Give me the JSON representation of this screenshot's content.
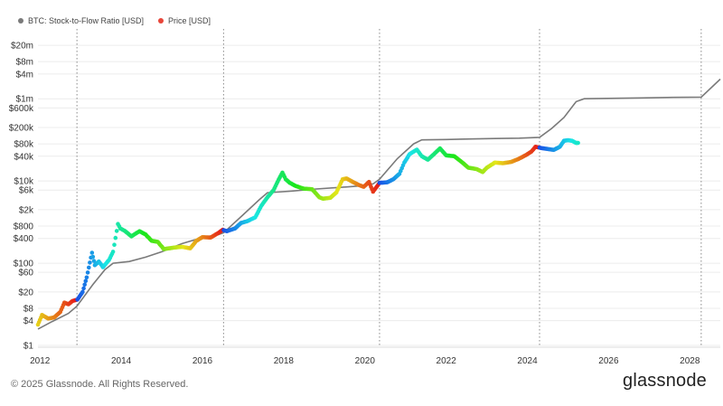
{
  "legend": [
    {
      "label": "BTC: Stock-to-Flow Ratio [USD]",
      "color": "#7a7a7a"
    },
    {
      "label": "Price [USD]",
      "color": "#e8463a"
    }
  ],
  "footer": "© 2025 Glassnode. All Rights Reserved.",
  "logo": "glassnode",
  "chart_data": {
    "type": "line",
    "y_scale": "log",
    "ylim": [
      1,
      50000000
    ],
    "xlim": [
      2011.95,
      2028.75
    ],
    "grid": true,
    "y_ticks": [
      {
        "v": 1,
        "label": "$1"
      },
      {
        "v": 4,
        "label": "$4"
      },
      {
        "v": 8,
        "label": "$8"
      },
      {
        "v": 20,
        "label": "$20"
      },
      {
        "v": 60,
        "label": "$60"
      },
      {
        "v": 100,
        "label": "$100"
      },
      {
        "v": 400,
        "label": "$400"
      },
      {
        "v": 800,
        "label": "$800"
      },
      {
        "v": 2000,
        "label": "$2k"
      },
      {
        "v": 6000,
        "label": "$6k"
      },
      {
        "v": 10000,
        "label": "$10k"
      },
      {
        "v": 40000,
        "label": "$40k"
      },
      {
        "v": 80000,
        "label": "$80k"
      },
      {
        "v": 200000,
        "label": "$200k"
      },
      {
        "v": 600000,
        "label": "$600k"
      },
      {
        "v": 1000000,
        "label": "$1m"
      },
      {
        "v": 4000000,
        "label": "$4m"
      },
      {
        "v": 8000000,
        "label": "$8m"
      },
      {
        "v": 20000000,
        "label": "$20m"
      }
    ],
    "x_ticks": [
      {
        "v": 2012,
        "label": "2012"
      },
      {
        "v": 2014,
        "label": "2014"
      },
      {
        "v": 2016,
        "label": "2016"
      },
      {
        "v": 2018,
        "label": "2018"
      },
      {
        "v": 2020,
        "label": "2020"
      },
      {
        "v": 2022,
        "label": "2022"
      },
      {
        "v": 2024,
        "label": "2024"
      },
      {
        "v": 2026,
        "label": "2026"
      },
      {
        "v": 2028,
        "label": "2028"
      }
    ],
    "halving_lines": [
      2012.91,
      2016.52,
      2020.36,
      2024.3,
      2028.28
    ],
    "series": [
      {
        "name": "BTC: Stock-to-Flow Ratio [USD]",
        "color": "#7a7a7a",
        "points": [
          [
            2011.95,
            2.5
          ],
          [
            2012.3,
            3.8
          ],
          [
            2012.7,
            6
          ],
          [
            2012.91,
            9
          ],
          [
            2013.3,
            30
          ],
          [
            2013.6,
            70
          ],
          [
            2013.8,
            100
          ],
          [
            2014.2,
            110
          ],
          [
            2014.6,
            140
          ],
          [
            2015.0,
            190
          ],
          [
            2015.5,
            300
          ],
          [
            2016.0,
            420
          ],
          [
            2016.4,
            500
          ],
          [
            2016.52,
            550
          ],
          [
            2017.0,
            1500
          ],
          [
            2017.4,
            3500
          ],
          [
            2017.6,
            5200
          ],
          [
            2018.2,
            5700
          ],
          [
            2018.8,
            6400
          ],
          [
            2019.4,
            7000
          ],
          [
            2019.9,
            7600
          ],
          [
            2020.2,
            8500
          ],
          [
            2020.36,
            11000
          ],
          [
            2020.8,
            35000
          ],
          [
            2021.2,
            80000
          ],
          [
            2021.4,
            100000
          ],
          [
            2022.0,
            102000
          ],
          [
            2022.6,
            105000
          ],
          [
            2023.2,
            108000
          ],
          [
            2023.8,
            110000
          ],
          [
            2024.3,
            115000
          ],
          [
            2024.6,
            190000
          ],
          [
            2024.9,
            350000
          ],
          [
            2025.2,
            850000
          ],
          [
            2025.4,
            1000000
          ],
          [
            2026.0,
            1020000
          ],
          [
            2026.8,
            1050000
          ],
          [
            2027.6,
            1080000
          ],
          [
            2028.28,
            1100000
          ],
          [
            2028.75,
            3000000
          ]
        ]
      },
      {
        "name": "Price [USD]",
        "color": "#e8463a",
        "points": [
          [
            2011.95,
            3.2
          ],
          [
            2012.05,
            5.5
          ],
          [
            2012.2,
            4.5
          ],
          [
            2012.35,
            4.8
          ],
          [
            2012.5,
            6.5
          ],
          [
            2012.6,
            11
          ],
          [
            2012.7,
            10
          ],
          [
            2012.8,
            12
          ],
          [
            2012.92,
            13
          ],
          [
            2013.05,
            20
          ],
          [
            2013.15,
            45
          ],
          [
            2013.28,
            180
          ],
          [
            2013.35,
            90
          ],
          [
            2013.45,
            110
          ],
          [
            2013.55,
            80
          ],
          [
            2013.7,
            120
          ],
          [
            2013.8,
            190
          ],
          [
            2013.92,
            900
          ],
          [
            2013.98,
            700
          ],
          [
            2014.1,
            600
          ],
          [
            2014.25,
            450
          ],
          [
            2014.45,
            600
          ],
          [
            2014.6,
            500
          ],
          [
            2014.75,
            350
          ],
          [
            2014.9,
            330
          ],
          [
            2015.05,
            220
          ],
          [
            2015.3,
            240
          ],
          [
            2015.5,
            250
          ],
          [
            2015.7,
            230
          ],
          [
            2015.85,
            350
          ],
          [
            2016.0,
            430
          ],
          [
            2016.2,
            420
          ],
          [
            2016.4,
            550
          ],
          [
            2016.5,
            650
          ],
          [
            2016.6,
            600
          ],
          [
            2016.8,
            700
          ],
          [
            2016.95,
            950
          ],
          [
            2017.1,
            1050
          ],
          [
            2017.3,
            1300
          ],
          [
            2017.45,
            2500
          ],
          [
            2017.6,
            4000
          ],
          [
            2017.75,
            6000
          ],
          [
            2017.9,
            12000
          ],
          [
            2017.97,
            16000
          ],
          [
            2018.05,
            11000
          ],
          [
            2018.15,
            9000
          ],
          [
            2018.3,
            7500
          ],
          [
            2018.5,
            6500
          ],
          [
            2018.7,
            6300
          ],
          [
            2018.88,
            4000
          ],
          [
            2018.97,
            3700
          ],
          [
            2019.15,
            3900
          ],
          [
            2019.3,
            5300
          ],
          [
            2019.45,
            11000
          ],
          [
            2019.55,
            11500
          ],
          [
            2019.7,
            9500
          ],
          [
            2019.85,
            8000
          ],
          [
            2019.97,
            7200
          ],
          [
            2020.1,
            9500
          ],
          [
            2020.2,
            5500
          ],
          [
            2020.36,
            9000
          ],
          [
            2020.55,
            9300
          ],
          [
            2020.7,
            11000
          ],
          [
            2020.85,
            15000
          ],
          [
            2020.97,
            28000
          ],
          [
            2021.1,
            45000
          ],
          [
            2021.28,
            58000
          ],
          [
            2021.4,
            40000
          ],
          [
            2021.55,
            33000
          ],
          [
            2021.7,
            45000
          ],
          [
            2021.85,
            62000
          ],
          [
            2022.0,
            42000
          ],
          [
            2022.2,
            40000
          ],
          [
            2022.4,
            28000
          ],
          [
            2022.55,
            21000
          ],
          [
            2022.75,
            19500
          ],
          [
            2022.9,
            16500
          ],
          [
            2023.0,
            21000
          ],
          [
            2023.2,
            28000
          ],
          [
            2023.4,
            27000
          ],
          [
            2023.6,
            29000
          ],
          [
            2023.8,
            35000
          ],
          [
            2023.97,
            43000
          ],
          [
            2024.1,
            52000
          ],
          [
            2024.2,
            68000
          ],
          [
            2024.35,
            63000
          ],
          [
            2024.5,
            60000
          ],
          [
            2024.65,
            57000
          ],
          [
            2024.8,
            68000
          ],
          [
            2024.9,
            95000
          ],
          [
            2025.0,
            98000
          ],
          [
            2025.1,
            95000
          ],
          [
            2025.2,
            84000
          ],
          [
            2025.27,
            85000
          ]
        ]
      }
    ]
  }
}
